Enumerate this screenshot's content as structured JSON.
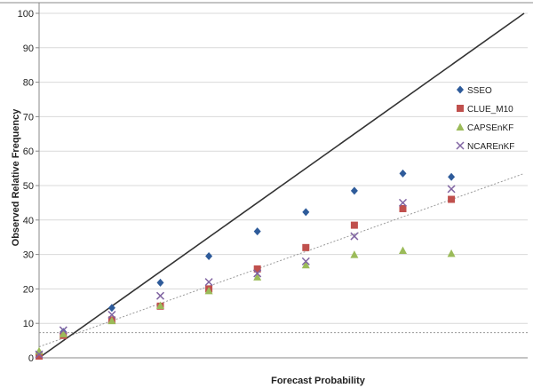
{
  "chart_data": {
    "type": "scatter",
    "xlabel": "Forecast Probability",
    "ylabel": "Observed Relative Frequency",
    "xlim": [
      0,
      100
    ],
    "ylim": [
      0,
      100
    ],
    "yticks": [
      0,
      10,
      20,
      30,
      40,
      50,
      60,
      70,
      80,
      90,
      100
    ],
    "legend_position": "right",
    "x": [
      0,
      5,
      15,
      25,
      35,
      45,
      55,
      65,
      75,
      85,
      95
    ],
    "series": [
      {
        "name": "SSEO",
        "marker": "diamond",
        "color": "#2e5b9a",
        "values": [
          1.5,
          7.5,
          14.5,
          21.8,
          29.5,
          36.7,
          42.3,
          48.5,
          53.5,
          52.5,
          null
        ]
      },
      {
        "name": "CLUE_M10",
        "marker": "square",
        "color": "#c0504d",
        "values": [
          0.5,
          6.5,
          11.0,
          15.0,
          20.0,
          25.8,
          32.0,
          38.5,
          43.3,
          46.0,
          null
        ]
      },
      {
        "name": "CAPSEnKF",
        "marker": "triangle",
        "color": "#9bbb59",
        "values": [
          2.0,
          7.0,
          10.8,
          15.2,
          19.5,
          23.5,
          27.0,
          30.0,
          31.2,
          30.3,
          null
        ]
      },
      {
        "name": "NCAREnKF",
        "marker": "x",
        "color": "#8064a2",
        "values": [
          1.0,
          8.0,
          12.5,
          18.0,
          22.0,
          24.5,
          28.0,
          35.3,
          45.0,
          49.0,
          null
        ]
      }
    ],
    "reference_lines": {
      "perfect_reliability": {
        "x": [
          0,
          100
        ],
        "y": [
          0,
          100
        ],
        "color": "#333333"
      },
      "trend": {
        "x": [
          0,
          100
        ],
        "y": [
          3.2,
          53.5
        ],
        "color": "#9a9a9a"
      },
      "climatology": {
        "y": 7.3,
        "color": "#9a9a9a"
      }
    },
    "grid": "horizontal"
  }
}
